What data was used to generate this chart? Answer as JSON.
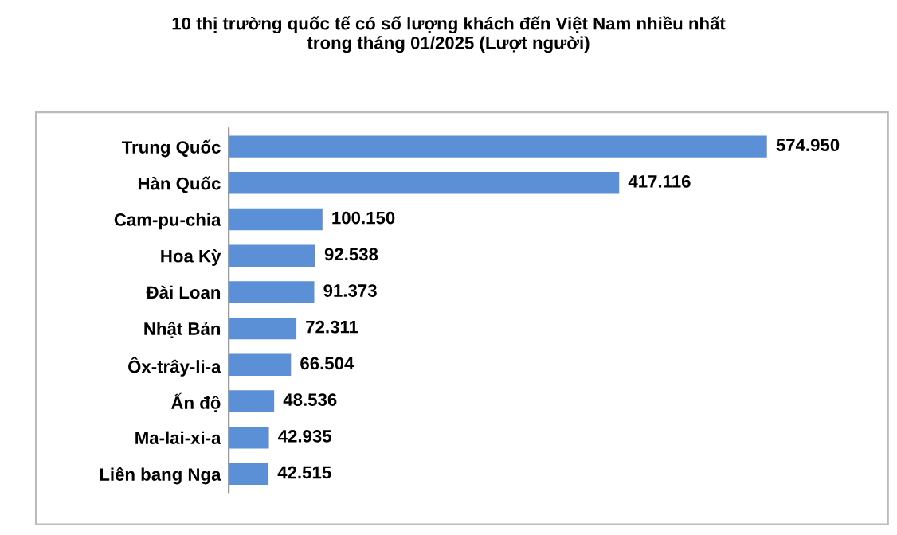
{
  "chart_data": {
    "type": "bar",
    "orientation": "horizontal",
    "title": "10 thị trường quốc tế có số lượng khách đến Việt Nam nhiều nhất\ntrong tháng 01/2025 (Lượt người)",
    "categories": [
      "Trung Quốc",
      "Hàn Quốc",
      "Cam-pu-chia",
      "Hoa Kỳ",
      "Đài Loan",
      "Nhật Bản",
      "Ôx-trây-li-a",
      "Ấn độ",
      "Ma-lai-xi-a",
      "Liên bang Nga"
    ],
    "values": [
      574950,
      417116,
      100150,
      92538,
      91373,
      72311,
      66504,
      48536,
      42935,
      42515
    ],
    "value_labels": [
      "574.950",
      "417.116",
      "100.150",
      "92.538",
      "91.373",
      "72.311",
      "66.504",
      "48.536",
      "42.935",
      "42.515"
    ],
    "color": "#5b8fd6",
    "grid": false,
    "legend": false,
    "tick_labels": "y"
  }
}
